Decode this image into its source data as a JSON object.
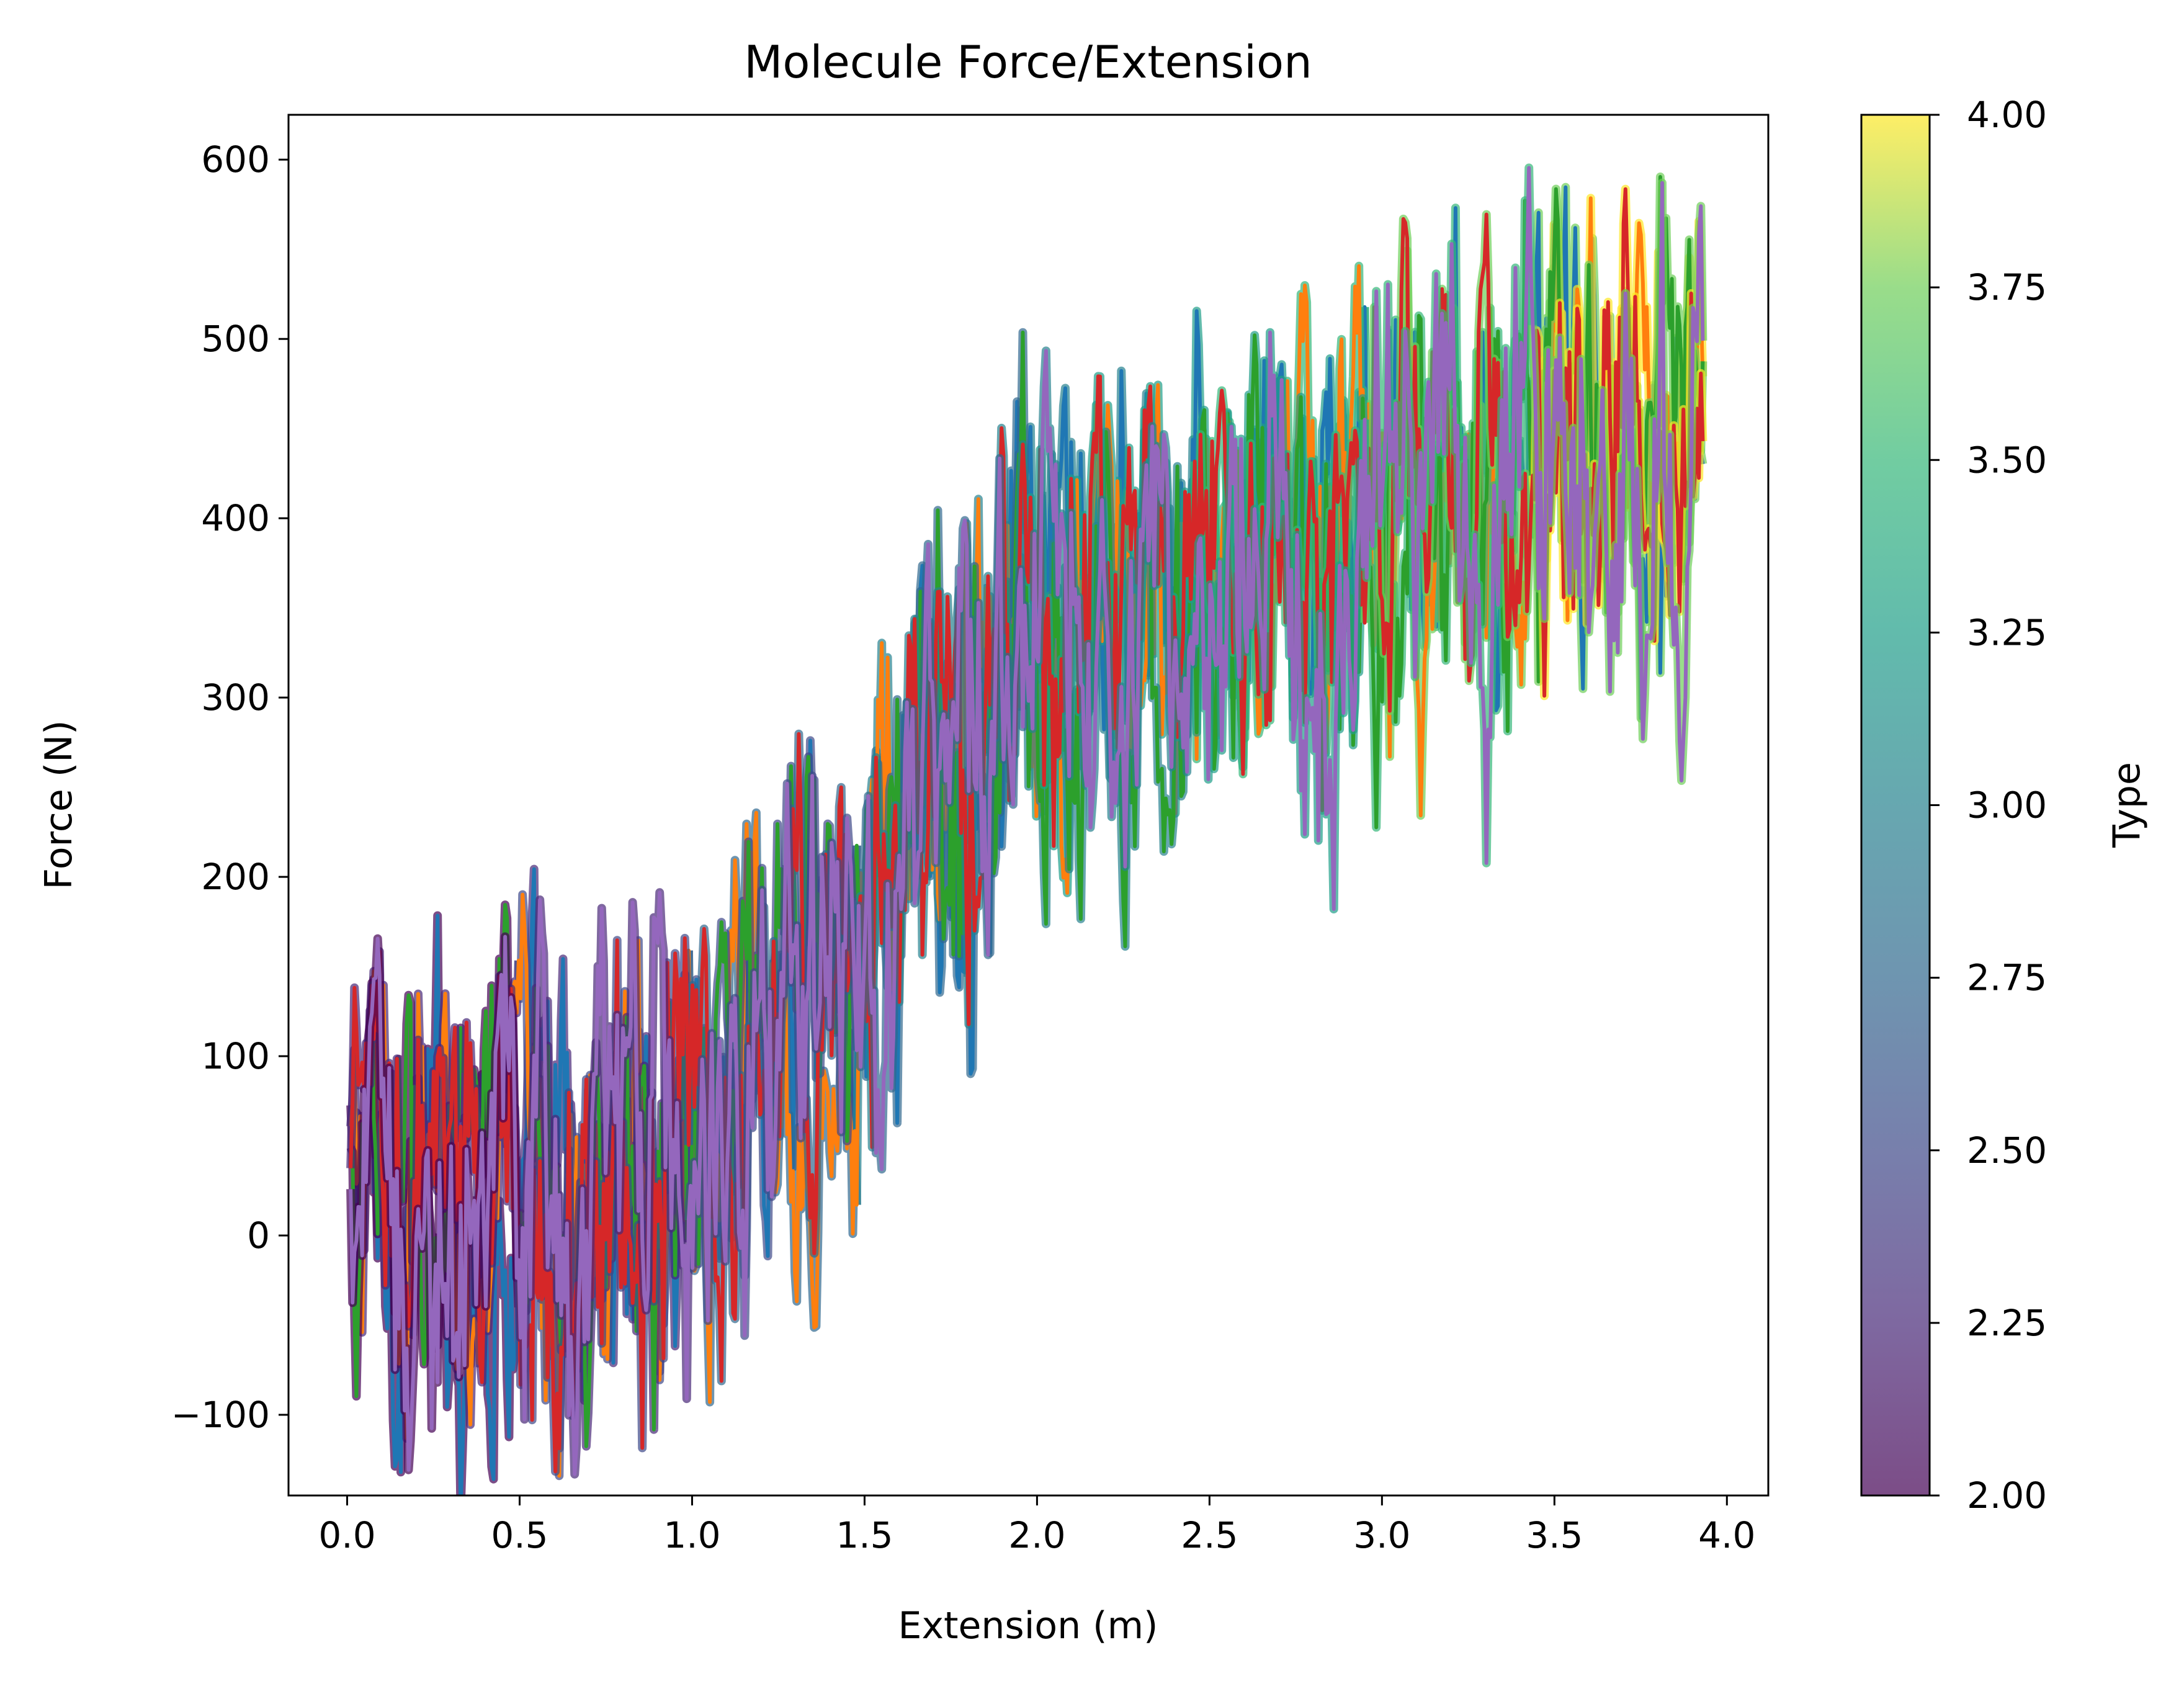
{
  "chart_data": {
    "type": "line",
    "title": "Molecule Force/Extension",
    "xlabel": "Extension (m)",
    "ylabel": "Force (N)",
    "xlim": [
      -0.17,
      4.12
    ],
    "ylim": [
      -145,
      625
    ],
    "xticks": [
      0.0,
      0.5,
      1.0,
      1.5,
      2.0,
      2.5,
      3.0,
      3.5,
      4.0
    ],
    "xtick_labels": [
      "0.0",
      "0.5",
      "1.0",
      "1.5",
      "2.0",
      "2.5",
      "3.0",
      "3.5",
      "4.0"
    ],
    "yticks": [
      -100,
      0,
      100,
      200,
      300,
      400,
      500,
      600
    ],
    "ytick_labels": [
      "−100",
      "0",
      "100",
      "200",
      "300",
      "400",
      "500",
      "600"
    ],
    "grid": false,
    "colorbar": {
      "label": "Type",
      "min": 2.0,
      "max": 4.0,
      "ticks": [
        2.0,
        2.25,
        2.5,
        2.75,
        3.0,
        3.25,
        3.5,
        3.75,
        4.0
      ],
      "tick_labels": [
        "2.00",
        "2.25",
        "2.50",
        "2.75",
        "3.00",
        "3.25",
        "3.50",
        "3.75",
        "4.00"
      ],
      "colormap": "viridis",
      "alpha": 0.7
    },
    "series_colors": [
      "#1f77b4",
      "#ff7f0e",
      "#2ca02c",
      "#d62728",
      "#9467bd"
    ],
    "trend": {
      "x": [
        0.0,
        0.2,
        0.4,
        0.6,
        0.8,
        1.0,
        1.2,
        1.4,
        1.6,
        1.8,
        2.0,
        2.2,
        2.4,
        2.6,
        2.8,
        3.0,
        3.2,
        3.4,
        3.6,
        3.8,
        3.93
      ],
      "y": [
        15,
        10,
        10,
        12,
        20,
        70,
        100,
        140,
        210,
        290,
        330,
        340,
        350,
        370,
        385,
        400,
        415,
        425,
        440,
        460,
        420
      ]
    }
  }
}
